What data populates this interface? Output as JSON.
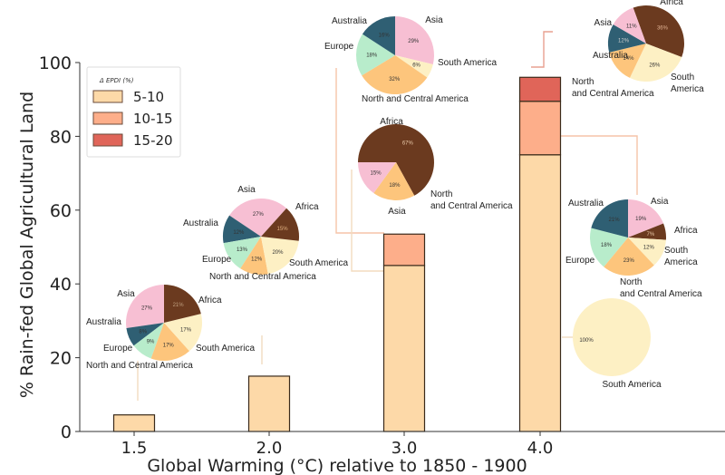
{
  "chart_data": {
    "type": "bar",
    "title": "",
    "xlabel": "Global Warming (°C) relative to 1850 - 1900",
    "ylabel": "% Rain-fed Global Agricultural Land",
    "ylim": [
      0,
      100
    ],
    "yticks": [
      "0",
      "20",
      "40",
      "60",
      "80",
      "100"
    ],
    "categories": [
      "1.5",
      "2.0",
      "3.0",
      "4.0"
    ],
    "stacked": true,
    "series": [
      {
        "name": "5-10",
        "color": "#fdd9a8",
        "values": [
          4.5,
          15,
          45,
          75
        ]
      },
      {
        "name": "10-15",
        "color": "#fdae8a",
        "values": [
          0,
          0,
          8.5,
          14.5
        ]
      },
      {
        "name": "15-20",
        "color": "#e06559",
        "values": [
          0,
          0,
          0,
          6.5
        ]
      }
    ],
    "legend": {
      "title": "Δ EPDI (%)",
      "placement": "top-left",
      "entries": [
        "5-10",
        "10-15",
        "15-20"
      ]
    },
    "region_colors": {
      "Africa": "#6b3a1f",
      "Asia": "#f7bfd3",
      "Australia": "#2f5f73",
      "Europe": "#b8eccb",
      "North and Central America": "#fdc57c",
      "South America": "#fdf0c4"
    },
    "pies": [
      {
        "id": "pie-1.5",
        "category": "1.5",
        "band": "5-10",
        "slices": [
          {
            "region": "Africa",
            "label": "Africa",
            "pct": 21
          },
          {
            "region": "Asia",
            "label": "Asia",
            "pct": 27
          },
          {
            "region": "Australia",
            "label": "Australia",
            "pct": 8
          },
          {
            "region": "Europe",
            "label": "Europe",
            "pct": 9
          },
          {
            "region": "North and Central America",
            "label": "North and Central America",
            "pct": 17
          },
          {
            "region": "South America",
            "label": "South America",
            "pct": 17
          }
        ]
      },
      {
        "id": "pie-2.0",
        "category": "2.0",
        "band": "5-10",
        "slices": [
          {
            "region": "Africa",
            "label": "Africa",
            "pct": 15
          },
          {
            "region": "Asia",
            "label": "Asia",
            "pct": 27
          },
          {
            "region": "Australia",
            "label": "Australia",
            "pct": 12
          },
          {
            "region": "Europe",
            "label": "Europe",
            "pct": 13
          },
          {
            "region": "North and Central America",
            "label": "North and Central America",
            "pct": 12
          },
          {
            "region": "South America",
            "label": "South America",
            "pct": 20
          }
        ]
      },
      {
        "id": "pie-3.0-low",
        "category": "3.0",
        "band": "5-10",
        "slices": [
          {
            "region": "Asia",
            "label": "Asia",
            "pct": 29
          },
          {
            "region": "South America",
            "label": "South America",
            "pct": 6
          },
          {
            "region": "North and Central America",
            "label": "North and Central America",
            "pct": 32
          },
          {
            "region": "Europe",
            "label": "Europe",
            "pct": 18
          },
          {
            "region": "Australia",
            "label": "Australia",
            "pct": 16
          }
        ]
      },
      {
        "id": "pie-3.0-high",
        "category": "3.0",
        "band": "10-15",
        "slices": [
          {
            "region": "Africa",
            "label": "Africa",
            "pct": 67
          },
          {
            "region": "North and Central America",
            "label": "North and Central America",
            "pct": 18
          },
          {
            "region": "Asia",
            "label": "Asia",
            "pct": 15
          }
        ]
      },
      {
        "id": "pie-4.0-top",
        "category": "4.0",
        "band": "15-20",
        "slices": [
          {
            "region": "Africa",
            "label": "Africa",
            "pct": 36
          },
          {
            "region": "South America",
            "label": "South America",
            "pct": 26
          },
          {
            "region": "North and Central America",
            "label": "North and Central America",
            "pct": 14
          },
          {
            "region": "Australia",
            "label": "Australia",
            "pct": 12
          },
          {
            "region": "Asia",
            "label": "Asia",
            "pct": 11
          }
        ]
      },
      {
        "id": "pie-4.0-mid",
        "category": "4.0",
        "band": "10-15",
        "slices": [
          {
            "region": "Asia",
            "label": "Asia",
            "pct": 19
          },
          {
            "region": "Africa",
            "label": "Africa",
            "pct": 7
          },
          {
            "region": "South America",
            "label": "South America",
            "pct": 12
          },
          {
            "region": "North and Central America",
            "label": "North and Central America",
            "pct": 23
          },
          {
            "region": "Europe",
            "label": "Europe",
            "pct": 18
          },
          {
            "region": "Australia",
            "label": "Australia",
            "pct": 21
          }
        ]
      },
      {
        "id": "pie-4.0-low",
        "category": "4.0",
        "band": "5-10",
        "slices": [
          {
            "region": "South America",
            "label": "South America",
            "pct": 100
          }
        ]
      }
    ]
  }
}
